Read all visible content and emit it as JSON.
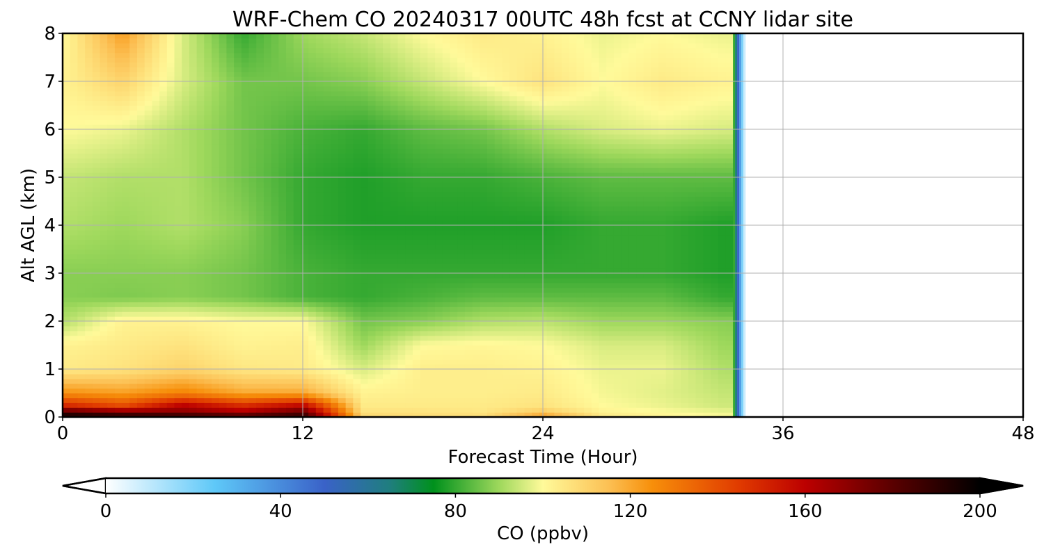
{
  "chart_data": {
    "type": "heatmap",
    "title": "WRF-Chem CO  20240317 00UTC 48h fcst at CCNY lidar site",
    "xlabel": "Forecast Time (Hour)",
    "ylabel": "Alt AGL (km)",
    "xlim": [
      0,
      48
    ],
    "ylim": [
      0,
      8
    ],
    "xticks": [
      "0",
      "12",
      "24",
      "36",
      "48"
    ],
    "yticks": [
      "0",
      "1",
      "2",
      "3",
      "4",
      "5",
      "6",
      "7",
      "8"
    ],
    "grid": true,
    "data_end_hour": 33.5,
    "colorbar": {
      "label": "CO  (ppbv)",
      "range": [
        0,
        200
      ],
      "ticks": [
        "0",
        "40",
        "80",
        "120",
        "160",
        "200"
      ],
      "extend": "both",
      "stops": [
        {
          "v": 0,
          "c": "#ffffff"
        },
        {
          "v": 25,
          "c": "#5ec8f8"
        },
        {
          "v": 50,
          "c": "#3a62c8"
        },
        {
          "v": 65,
          "c": "#1f7e7e"
        },
        {
          "v": 75,
          "c": "#00911c"
        },
        {
          "v": 90,
          "c": "#9ed85c"
        },
        {
          "v": 100,
          "c": "#fffa9a"
        },
        {
          "v": 115,
          "c": "#fcc054"
        },
        {
          "v": 125,
          "c": "#f78f0a"
        },
        {
          "v": 145,
          "c": "#e03a00"
        },
        {
          "v": 160,
          "c": "#bc0000"
        },
        {
          "v": 180,
          "c": "#5a0000"
        },
        {
          "v": 200,
          "c": "#000000"
        }
      ]
    },
    "times_h": [
      0,
      3,
      6,
      9,
      12,
      15,
      18,
      21,
      24,
      27,
      30,
      33
    ],
    "altitudes_km": [
      0,
      0.1,
      0.25,
      0.5,
      1,
      1.5,
      2,
      2.5,
      3,
      4,
      5,
      6,
      7,
      8
    ],
    "values_ppbv": [
      [
        200,
        198,
        195,
        190,
        192,
        110,
        108,
        108,
        125,
        105,
        102,
        100
      ],
      [
        185,
        175,
        172,
        165,
        180,
        106,
        106,
        105,
        112,
        102,
        100,
        98
      ],
      [
        150,
        140,
        160,
        148,
        158,
        104,
        104,
        104,
        106,
        100,
        98,
        95
      ],
      [
        125,
        122,
        128,
        120,
        120,
        102,
        103,
        103,
        104,
        99,
        97,
        94
      ],
      [
        104,
        106,
        110,
        105,
        104,
        96,
        103,
        103,
        102,
        98,
        98,
        92
      ],
      [
        102,
        104,
        106,
        102,
        103,
        90,
        100,
        101,
        100,
        96,
        96,
        90
      ],
      [
        92,
        102,
        102,
        100,
        100,
        86,
        88,
        92,
        93,
        90,
        90,
        88
      ],
      [
        88,
        87,
        88,
        86,
        82,
        80,
        82,
        84,
        84,
        84,
        84,
        80
      ],
      [
        88,
        88,
        88,
        86,
        82,
        80,
        80,
        80,
        80,
        80,
        80,
        78
      ],
      [
        92,
        90,
        92,
        88,
        80,
        78,
        78,
        78,
        78,
        80,
        80,
        78
      ],
      [
        94,
        92,
        92,
        86,
        80,
        78,
        80,
        80,
        82,
        84,
        84,
        84
      ],
      [
        100,
        98,
        92,
        86,
        82,
        80,
        84,
        86,
        92,
        96,
        98,
        96
      ],
      [
        102,
        110,
        96,
        86,
        86,
        88,
        94,
        100,
        106,
        100,
        104,
        102
      ],
      [
        100,
        122,
        96,
        80,
        90,
        94,
        100,
        104,
        102,
        98,
        100,
        98
      ]
    ]
  }
}
